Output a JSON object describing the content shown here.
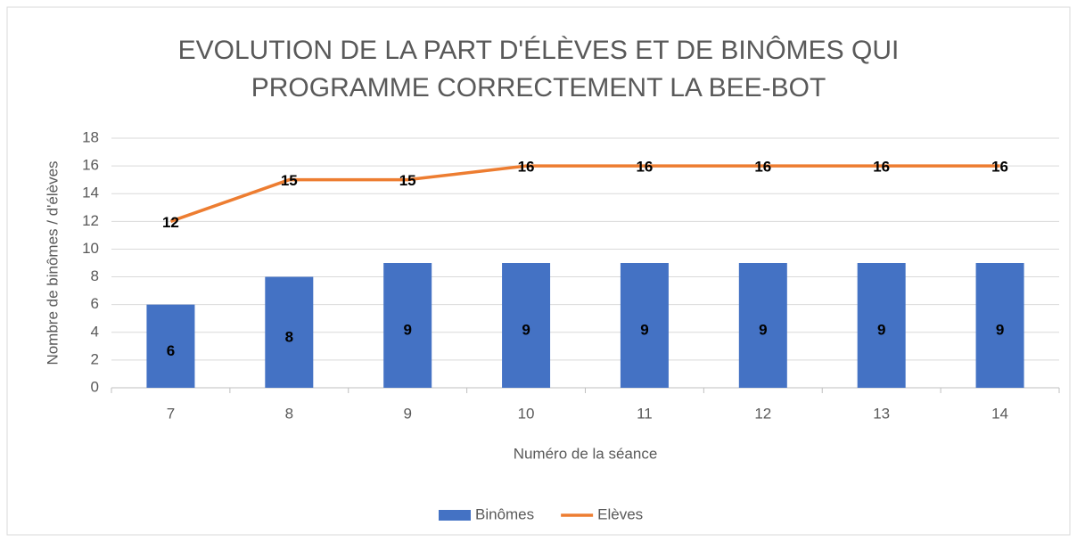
{
  "chart_data": {
    "type": "bar_line",
    "title": "EVOLUTION DE LA PART D'ÉLÈVES ET DE BINÔMES QUI PROGRAMME CORRECTEMENT LA BEE-BOT",
    "xlabel": "Numéro de la séance",
    "ylabel": "Nombre de binômes / d'élèves",
    "categories": [
      "7",
      "8",
      "9",
      "10",
      "11",
      "12",
      "13",
      "14"
    ],
    "series": [
      {
        "name": "Binômes",
        "type": "bar",
        "color": "#4472c4",
        "values": [
          6,
          8,
          9,
          9,
          9,
          9,
          9,
          9
        ]
      },
      {
        "name": "Elèves",
        "type": "line",
        "color": "#ed7d31",
        "values": [
          12,
          15,
          15,
          16,
          16,
          16,
          16,
          16
        ]
      }
    ],
    "ylim": [
      0,
      18
    ],
    "yticks": [
      0,
      2,
      4,
      6,
      8,
      10,
      12,
      14,
      16,
      18
    ],
    "grid": true,
    "legend": "bottom"
  }
}
